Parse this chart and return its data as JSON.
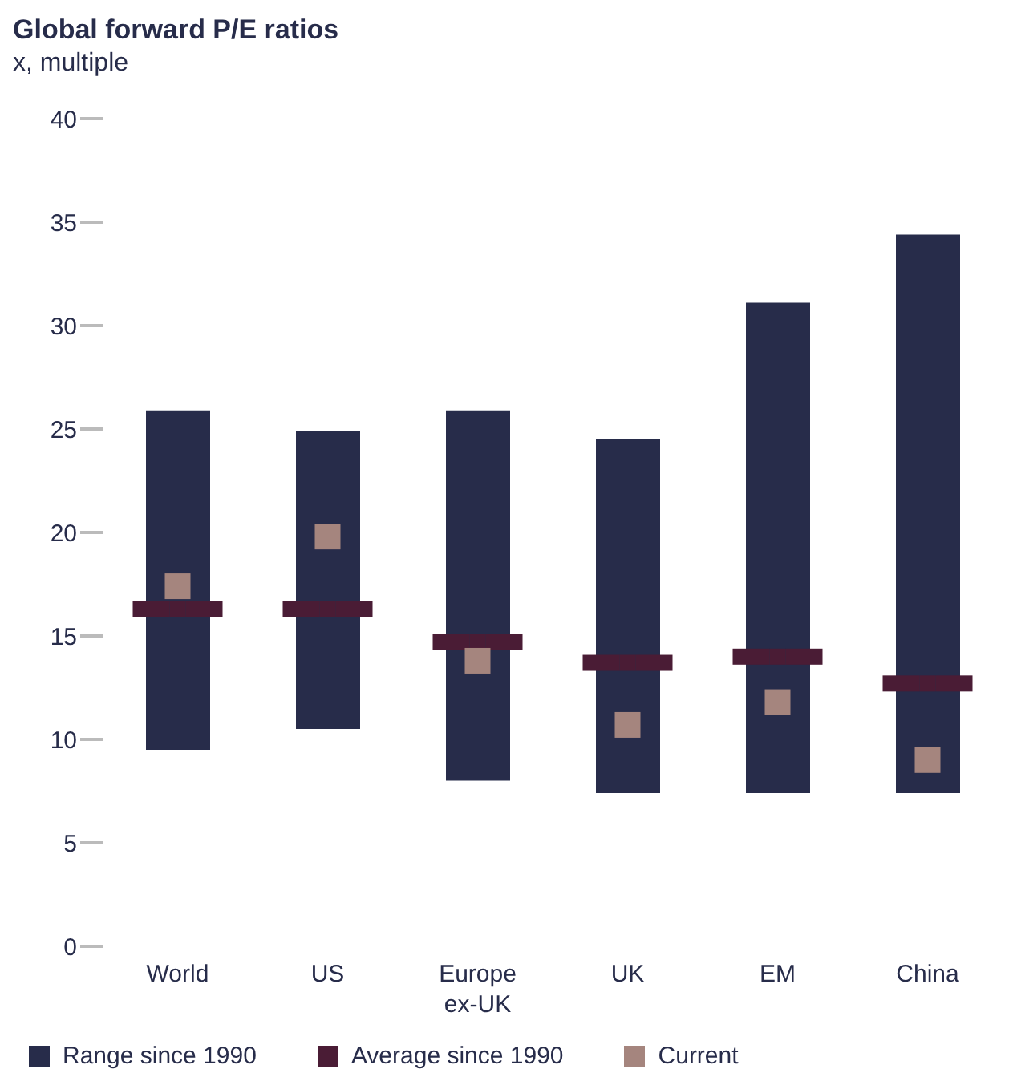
{
  "chart_data": {
    "type": "bar",
    "title": "Global forward P/E ratios",
    "subtitle": "x, multiple",
    "categories": [
      "World",
      "US",
      "Europe ex-UK",
      "UK",
      "EM",
      "China"
    ],
    "series": [
      {
        "name": "Range since 1990",
        "type": "bar",
        "color": "#272c4a",
        "base": [
          9.5,
          10.5,
          8.0,
          7.4,
          7.4,
          7.4
        ],
        "values": [
          16.4,
          14.4,
          17.9,
          17.1,
          23.7,
          27.0
        ]
      },
      {
        "name": "Average since 1990",
        "type": "scatter",
        "color": "#4a1c35",
        "values": [
          16.3,
          16.3,
          14.7,
          13.7,
          14.0,
          12.7
        ]
      },
      {
        "name": "Current",
        "type": "scatter",
        "marker": "square",
        "color": "#a5857e",
        "values": [
          17.4,
          19.8,
          13.8,
          10.7,
          11.8,
          9.0
        ]
      }
    ],
    "ylim": [
      0,
      40
    ],
    "yticks": [
      0,
      5,
      10,
      15,
      20,
      25,
      30,
      35,
      40
    ],
    "grid": false,
    "legend": "bottom"
  }
}
